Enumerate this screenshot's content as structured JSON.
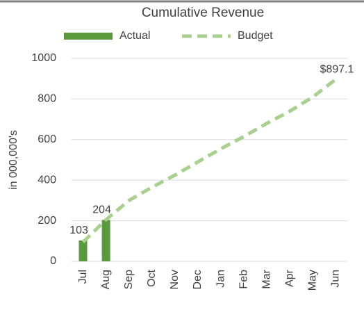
{
  "chart_data": {
    "type": "bar",
    "title": "Cumulative Revenue",
    "y_label": "in 000,000's",
    "categories": [
      "Jul",
      "Aug",
      "Sep",
      "Oct",
      "Nov",
      "Dec",
      "Jan",
      "Feb",
      "Mar",
      "Apr",
      "May",
      "Jun"
    ],
    "series": [
      {
        "name": "Actual",
        "type": "bar",
        "color": "#5b9a3c",
        "values": [
          103,
          204,
          null,
          null,
          null,
          null,
          null,
          null,
          null,
          null,
          null,
          null
        ],
        "value_labels": [
          "103",
          "204",
          null,
          null,
          null,
          null,
          null,
          null,
          null,
          null,
          null,
          null
        ]
      },
      {
        "name": "Budget",
        "type": "line",
        "color": "#a9d08e",
        "values": [
          95,
          205,
          300,
          365,
          425,
          490,
          555,
          615,
          680,
          740,
          810,
          897.1
        ],
        "value_labels": [
          null,
          null,
          null,
          null,
          null,
          null,
          null,
          null,
          null,
          null,
          null,
          "$897.1"
        ]
      }
    ],
    "ylim": [
      0,
      1000
    ],
    "yticks": [
      0,
      200,
      400,
      600,
      800,
      1000
    ],
    "grid": true,
    "legend": "top"
  }
}
